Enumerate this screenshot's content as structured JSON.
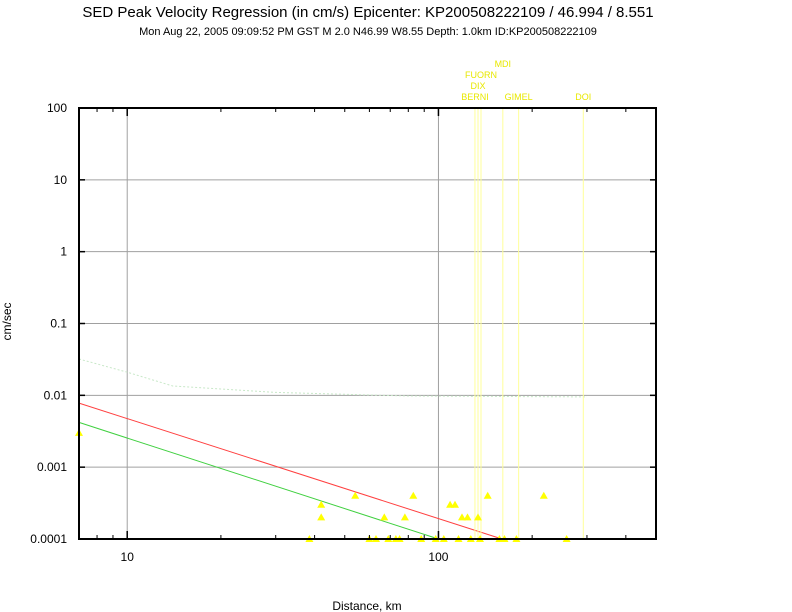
{
  "chart_data": {
    "type": "scatter",
    "title": "SED Peak Velocity Regression (in cm/s) Epicenter: KP200508222109 / 46.994 / 8.551",
    "subtitle": "Mon Aug 22, 2005 09:09:52 PM GST   M 2.0   N46.99 W8.55   Depth: 1.0km   ID:KP200508222109",
    "xlabel": "Distance, km",
    "ylabel": "cm/sec",
    "x_scale": "log",
    "y_scale": "log",
    "xlim": [
      7,
      500
    ],
    "ylim": [
      0.0001,
      100
    ],
    "x_ticks": [
      {
        "value": 10,
        "label": "10"
      },
      {
        "value": 100,
        "label": "100"
      }
    ],
    "y_ticks": [
      {
        "value": 100,
        "label": "100"
      },
      {
        "value": 10,
        "label": "10"
      },
      {
        "value": 1,
        "label": "1"
      },
      {
        "value": 0.1,
        "label": "0.1"
      },
      {
        "value": 0.01,
        "label": "0.01"
      },
      {
        "value": 0.001,
        "label": "0.001"
      },
      {
        "value": 0.0001,
        "label": "0.0001"
      }
    ],
    "grid": true,
    "colors": {
      "observations": "#ffff00",
      "red_curve": "#ff4040",
      "green_curve": "#40d040",
      "dotted_curve": "#c8e8c8",
      "station_lines": "#ffff99",
      "station_labels": "#e8e800"
    },
    "series": [
      {
        "kind": "points",
        "values": [
          {
            "x": 7.0,
            "y": 0.003
          },
          {
            "x": 38.5,
            "y": 0.0001
          },
          {
            "x": 42.0,
            "y": 0.0003
          },
          {
            "x": 42.0,
            "y": 0.0002
          },
          {
            "x": 54.0,
            "y": 0.0004
          },
          {
            "x": 60.0,
            "y": 0.0001
          },
          {
            "x": 63.0,
            "y": 0.0001
          },
          {
            "x": 67.0,
            "y": 0.0002
          },
          {
            "x": 69.0,
            "y": 0.0001
          },
          {
            "x": 73.0,
            "y": 0.0001
          },
          {
            "x": 75.0,
            "y": 0.0001
          },
          {
            "x": 78.0,
            "y": 0.0002
          },
          {
            "x": 83.0,
            "y": 0.0004
          },
          {
            "x": 88.0,
            "y": 0.0001
          },
          {
            "x": 98.0,
            "y": 0.0001
          },
          {
            "x": 104.0,
            "y": 0.0001
          },
          {
            "x": 109.0,
            "y": 0.0003
          },
          {
            "x": 113.0,
            "y": 0.0003
          },
          {
            "x": 116.0,
            "y": 0.0001
          },
          {
            "x": 119.0,
            "y": 0.0002
          },
          {
            "x": 124.0,
            "y": 0.0002
          },
          {
            "x": 127.0,
            "y": 0.0001
          },
          {
            "x": 134.0,
            "y": 0.0002
          },
          {
            "x": 136.0,
            "y": 0.0001
          },
          {
            "x": 144.0,
            "y": 0.0004
          },
          {
            "x": 157.0,
            "y": 0.0001
          },
          {
            "x": 163.0,
            "y": 0.0001
          },
          {
            "x": 178.0,
            "y": 0.0001
          },
          {
            "x": 218.0,
            "y": 0.0004
          },
          {
            "x": 258.0,
            "y": 0.0001
          }
        ]
      },
      {
        "kind": "line",
        "color_key": "red_curve",
        "values": [
          {
            "x": 7,
            "y": 0.0078
          },
          {
            "x": 160,
            "y": 0.0001
          }
        ]
      },
      {
        "kind": "line",
        "color_key": "green_curve",
        "values": [
          {
            "x": 7,
            "y": 0.0042
          },
          {
            "x": 100,
            "y": 0.0001
          }
        ]
      },
      {
        "kind": "dotted-line",
        "color_key": "dotted_curve",
        "values": [
          {
            "x": 7,
            "y": 0.032
          },
          {
            "x": 10,
            "y": 0.021
          },
          {
            "x": 14,
            "y": 0.0135
          },
          {
            "x": 30,
            "y": 0.011
          },
          {
            "x": 80,
            "y": 0.0098
          },
          {
            "x": 300,
            "y": 0.0095
          }
        ]
      }
    ],
    "stations": [
      {
        "name": "BERNI",
        "x": 131,
        "label_level": 0
      },
      {
        "name": "DIX",
        "x": 134,
        "label_level": 1
      },
      {
        "name": "FUORN",
        "x": 137,
        "label_level": 2
      },
      {
        "name": "MDI",
        "x": 161,
        "label_level": 3
      },
      {
        "name": "GIMEL",
        "x": 181,
        "label_level": 0
      },
      {
        "name": "DOI",
        "x": 292,
        "label_level": 0
      }
    ]
  }
}
